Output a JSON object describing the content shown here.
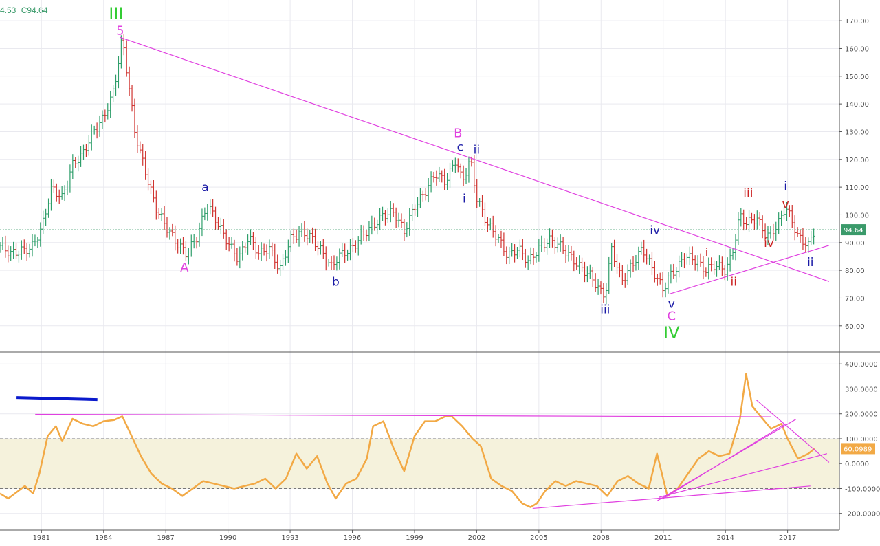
{
  "ohlc_readout": {
    "prev": "4.53",
    "close": "C94.64"
  },
  "chart_data": [
    {
      "type": "line",
      "title": "",
      "xlabel": "",
      "ylabel": "",
      "x_ticks": [
        "1981",
        "1984",
        "1987",
        "1990",
        "1993",
        "1996",
        "1999",
        "2002",
        "2005",
        "2008",
        "2011",
        "2014",
        "2017"
      ],
      "y_ticks": [
        "60.00",
        "70.00",
        "80.00",
        "90.00",
        "100.00",
        "110.00",
        "120.00",
        "130.00",
        "140.00",
        "150.00",
        "160.00",
        "170.00"
      ],
      "ylim": [
        54,
        174
      ],
      "xlim": [
        1979.0,
        2019.5
      ],
      "grid": true,
      "last_value_label": "94.64",
      "last_value": 94.64,
      "series": [
        {
          "x": [
            1979.0,
            1979.5,
            1980.0,
            1980.5,
            1981.0,
            1981.5,
            1982.0,
            1982.5,
            1983.0,
            1983.5,
            1984.0,
            1984.5,
            1984.9,
            1985.2,
            1985.5,
            1986.0,
            1986.5,
            1987.0,
            1987.5,
            1988.0,
            1988.5,
            1989.0,
            1989.5,
            1990.0,
            1990.5,
            1991.0,
            1991.5,
            1992.0,
            1992.5,
            1993.0,
            1993.5,
            1994.0,
            1994.5,
            1995.0,
            1995.3,
            1996.0,
            1996.5,
            1997.0,
            1997.5,
            1998.0,
            1998.5,
            1999.0,
            1999.5,
            2000.0,
            2000.5,
            2001.0,
            2001.3,
            2001.7,
            2002.0,
            2002.5,
            2003.0,
            2003.5,
            2004.0,
            2004.5,
            2005.0,
            2005.5,
            2006.0,
            2006.5,
            2007.0,
            2007.5,
            2008.0,
            2008.2,
            2008.5,
            2009.0,
            2009.5,
            2010.0,
            2010.5,
            2011.0,
            2011.3,
            2011.7,
            2012.0,
            2012.5,
            2013.0,
            2013.5,
            2014.0,
            2014.3,
            2014.7,
            2015.0,
            2015.5,
            2016.0,
            2016.5,
            2016.9,
            2017.2,
            2017.5,
            2018.0,
            2018.3
          ],
          "y": [
            89,
            86,
            87,
            88,
            95,
            110,
            106,
            118,
            122,
            130,
            135,
            145,
            164,
            148,
            130,
            116,
            103,
            96,
            90,
            86,
            92,
            104,
            97,
            90,
            84,
            92,
            86,
            88,
            80,
            91,
            94,
            92,
            87,
            81,
            85,
            88,
            93,
            96,
            100,
            101,
            94,
            103,
            108,
            115,
            112,
            120,
            112,
            120,
            106,
            97,
            92,
            85,
            88,
            83,
            88,
            91,
            89,
            85,
            81,
            78,
            72,
            71,
            88,
            76,
            82,
            88,
            80,
            73,
            78,
            81,
            85,
            84,
            80,
            82,
            80,
            85,
            100,
            97,
            99,
            92,
            96,
            103,
            98,
            92,
            89,
            94.64
          ],
          "name": ""
        }
      ],
      "wave_labels": [
        {
          "text": "III",
          "color": "#33cc33",
          "x": 1984.6,
          "y": 170.5
        },
        {
          "text": "5",
          "color": "#e040e0",
          "x": 1984.8,
          "y": 165
        },
        {
          "text": "A",
          "color": "#e040e0",
          "x": 1987.9,
          "y": 79.5
        },
        {
          "text": "a",
          "color": "#1a1aa6",
          "x": 1988.9,
          "y": 108.5
        },
        {
          "text": "b",
          "color": "#1a1aa6",
          "x": 1995.2,
          "y": 74.5
        },
        {
          "text": "B",
          "color": "#e040e0",
          "x": 2001.1,
          "y": 128
        },
        {
          "text": "c",
          "color": "#1a1aa6",
          "x": 2001.2,
          "y": 123
        },
        {
          "text": "ii",
          "color": "#1a1aa6",
          "x": 2002.0,
          "y": 122
        },
        {
          "text": "i",
          "color": "#1a1aa6",
          "x": 2001.4,
          "y": 104.5
        },
        {
          "text": "iii",
          "color": "#1a1aa6",
          "x": 2008.2,
          "y": 64.5
        },
        {
          "text": "iv",
          "color": "#1a1aa6",
          "x": 2010.6,
          "y": 93
        },
        {
          "text": "v",
          "color": "#1a1aa6",
          "x": 2011.4,
          "y": 66.5
        },
        {
          "text": "C",
          "color": "#e040e0",
          "x": 2011.4,
          "y": 62
        },
        {
          "text": "IV",
          "color": "#33cc33",
          "x": 2011.4,
          "y": 55.5
        },
        {
          "text": "i",
          "color": "#cc2222",
          "x": 2013.1,
          "y": 85
        },
        {
          "text": "ii",
          "color": "#cc2222",
          "x": 2014.4,
          "y": 74.5
        },
        {
          "text": "iii",
          "color": "#cc2222",
          "x": 2015.1,
          "y": 106.5
        },
        {
          "text": "iv",
          "color": "#cc2222",
          "x": 2016.1,
          "y": 88.5
        },
        {
          "text": "v",
          "color": "#cc2222",
          "x": 2016.9,
          "y": 102.5
        },
        {
          "text": "i",
          "color": "#1a1aa6",
          "x": 2016.9,
          "y": 109
        },
        {
          "text": "ii",
          "color": "#1a1aa6",
          "x": 2018.1,
          "y": 81.5
        }
      ],
      "trendlines": [
        {
          "x1": 1984.8,
          "y1": 164,
          "x2": 2019.0,
          "y2": 76,
          "color": "#e040e0"
        },
        {
          "x1": 2011.3,
          "y1": 71.5,
          "x2": 2019.0,
          "y2": 89,
          "color": "#e040e0"
        }
      ]
    },
    {
      "type": "line",
      "title": "",
      "xlabel": "",
      "ylabel": "",
      "y_ticks": [
        "-200.0000",
        "-100.0000",
        "0.0000",
        "100.0000",
        "200.0000",
        "300.0000",
        "400.0000"
      ],
      "ylim": [
        -245,
        420
      ],
      "xlim": [
        1979.0,
        2019.5
      ],
      "band": [
        -100,
        100
      ],
      "last_value_label": "60.0989",
      "last_value": 60.0989,
      "series": [
        {
          "x": [
            1979.0,
            1979.4,
            1979.8,
            1980.2,
            1980.6,
            1980.9,
            1981.3,
            1981.7,
            1982.0,
            1982.5,
            1983.0,
            1983.5,
            1984.0,
            1984.5,
            1984.9,
            1985.3,
            1985.8,
            1986.3,
            1986.8,
            1987.3,
            1987.8,
            1988.3,
            1988.8,
            1989.3,
            1989.8,
            1990.3,
            1990.8,
            1991.3,
            1991.8,
            1992.3,
            1992.8,
            1993.3,
            1993.8,
            1994.3,
            1994.8,
            1995.2,
            1995.7,
            1996.2,
            1996.7,
            1997.0,
            1997.5,
            1998.0,
            1998.5,
            1999.0,
            1999.5,
            2000.0,
            2000.5,
            2000.8,
            2001.3,
            2001.8,
            2002.2,
            2002.7,
            2003.2,
            2003.7,
            2004.2,
            2004.6,
            2004.9,
            2005.3,
            2005.8,
            2006.3,
            2006.8,
            2007.3,
            2007.8,
            2008.3,
            2008.8,
            2009.3,
            2009.8,
            2010.3,
            2010.7,
            2011.2,
            2011.7,
            2012.2,
            2012.7,
            2013.2,
            2013.7,
            2014.2,
            2014.7,
            2015.0,
            2015.3,
            2015.7,
            2016.2,
            2016.7,
            2017.0,
            2017.5,
            2018.0,
            2018.3
          ],
          "y": [
            -120,
            -140,
            -115,
            -90,
            -120,
            -40,
            110,
            150,
            90,
            180,
            160,
            150,
            170,
            175,
            190,
            120,
            30,
            -40,
            -80,
            -100,
            -130,
            -100,
            -70,
            -80,
            -90,
            -100,
            -90,
            -80,
            -60,
            -100,
            -60,
            40,
            -20,
            30,
            -80,
            -140,
            -80,
            -60,
            20,
            150,
            170,
            60,
            -30,
            110,
            170,
            170,
            190,
            190,
            150,
            100,
            70,
            -60,
            -90,
            -110,
            -160,
            -175,
            -160,
            -110,
            -70,
            -90,
            -70,
            -80,
            -90,
            -130,
            -70,
            -50,
            -80,
            -100,
            40,
            -130,
            -100,
            -40,
            20,
            50,
            30,
            40,
            180,
            360,
            230,
            190,
            140,
            160,
            100,
            20,
            40,
            60.0989
          ],
          "name": ""
        }
      ],
      "decor_lines": [
        {
          "x1": 1979.8,
          "y1": 265,
          "x2": 1983.7,
          "y2": 257,
          "color": "#0a1acc",
          "width": 4
        }
      ],
      "trendlines": [
        {
          "x1": 1980.7,
          "y1": 198,
          "x2": 2016.2,
          "y2": 188,
          "color": "#e040e0"
        },
        {
          "x1": 2004.7,
          "y1": -180,
          "x2": 2018.1,
          "y2": -90,
          "color": "#e040e0"
        },
        {
          "x1": 2010.7,
          "y1": -150,
          "x2": 2017.4,
          "y2": 178,
          "color": "#e040e0"
        },
        {
          "x1": 2010.8,
          "y1": -135,
          "x2": 2018.9,
          "y2": 40,
          "color": "#e040e0"
        },
        {
          "x1": 2015.5,
          "y1": 255,
          "x2": 2019.0,
          "y2": 5,
          "color": "#e040e0"
        },
        {
          "x1": 2011.0,
          "y1": -140,
          "x2": 2016.9,
          "y2": 160,
          "color": "#e040e0"
        }
      ]
    }
  ],
  "colors": {
    "price_up": "#2e9e6a",
    "price_down": "#d0332f",
    "price_line_marker": "#3a9a6a",
    "oscillator": "#f2a945",
    "band_fill": "#f5f2dc",
    "grid": "#e9e9ef",
    "axis_line": "#555555"
  }
}
